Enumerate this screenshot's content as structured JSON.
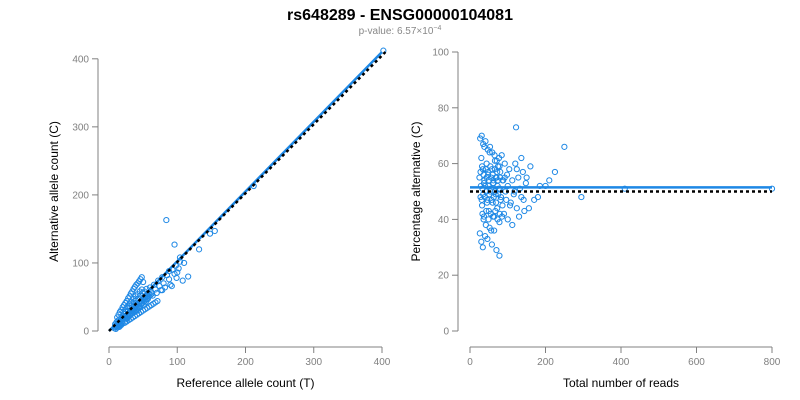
{
  "title": "rs648289 - ENSG00000104081",
  "subtitle": {
    "prefix": "p-value: 6.57×10",
    "exponent": "−4"
  },
  "colors": {
    "points": "#1e88e5",
    "fit_line": "#1e88e5",
    "reference_line": "#000000",
    "axis": "#808080",
    "background": "#ffffff"
  },
  "chart_data": [
    {
      "type": "scatter",
      "xlabel": "Reference allele count (T)",
      "ylabel": "Alternative allele count (C)",
      "xlim": [
        0,
        400
      ],
      "ylim": [
        0,
        410
      ],
      "xticks": [
        0,
        100,
        200,
        300,
        400
      ],
      "yticks": [
        0,
        100,
        200,
        300,
        400
      ],
      "grid": false,
      "legend": "none",
      "marker": "open-circle",
      "fit_line": {
        "from": [
          0,
          0
        ],
        "to": [
          400,
          410
        ],
        "style": "solid"
      },
      "reference_line": {
        "from": [
          0,
          0
        ],
        "to": [
          405,
          410
        ],
        "style": "dotted"
      },
      "points": [
        [
          9,
          10
        ],
        [
          10,
          8
        ],
        [
          11,
          13
        ],
        [
          12,
          9
        ],
        [
          13,
          15
        ],
        [
          14,
          12
        ],
        [
          15,
          17
        ],
        [
          16,
          14
        ],
        [
          17,
          11
        ],
        [
          18,
          19
        ],
        [
          19,
          16
        ],
        [
          20,
          22
        ],
        [
          21,
          18
        ],
        [
          22,
          25
        ],
        [
          23,
          20
        ],
        [
          24,
          14
        ],
        [
          25,
          28
        ],
        [
          26,
          23
        ],
        [
          27,
          21
        ],
        [
          28,
          30
        ],
        [
          29,
          26
        ],
        [
          30,
          34
        ],
        [
          31,
          24
        ],
        [
          32,
          29
        ],
        [
          33,
          38
        ],
        [
          34,
          27
        ],
        [
          35,
          31
        ],
        [
          36,
          42
        ],
        [
          37,
          33
        ],
        [
          38,
          28
        ],
        [
          39,
          45
        ],
        [
          40,
          36
        ],
        [
          41,
          39
        ],
        [
          42,
          30
        ],
        [
          43,
          48
        ],
        [
          44,
          41
        ],
        [
          45,
          35
        ],
        [
          46,
          52
        ],
        [
          47,
          44
        ],
        [
          48,
          40
        ],
        [
          49,
          56
        ],
        [
          50,
          46
        ],
        [
          51,
          38
        ],
        [
          52,
          58
        ],
        [
          53,
          49
        ],
        [
          54,
          43
        ],
        [
          55,
          62
        ],
        [
          56,
          51
        ],
        [
          57,
          47
        ],
        [
          58,
          55
        ],
        [
          60,
          64
        ],
        [
          62,
          57
        ],
        [
          64,
          52
        ],
        [
          66,
          68
        ],
        [
          68,
          61
        ],
        [
          70,
          56
        ],
        [
          72,
          74
        ],
        [
          74,
          66
        ],
        [
          76,
          60
        ],
        [
          78,
          79
        ],
        [
          80,
          70
        ],
        [
          82,
          64
        ],
        [
          85,
          82
        ],
        [
          88,
          76
        ],
        [
          90,
          68
        ],
        [
          93,
          90
        ],
        [
          96,
          84
        ],
        [
          98,
          96
        ],
        [
          100,
          86
        ],
        [
          104,
          102
        ],
        [
          12,
          20
        ],
        [
          14,
          24
        ],
        [
          16,
          28
        ],
        [
          18,
          31
        ],
        [
          20,
          35
        ],
        [
          22,
          38
        ],
        [
          24,
          41
        ],
        [
          26,
          44
        ],
        [
          28,
          48
        ],
        [
          30,
          51
        ],
        [
          32,
          55
        ],
        [
          34,
          58
        ],
        [
          36,
          62
        ],
        [
          38,
          65
        ],
        [
          40,
          68
        ],
        [
          42,
          70
        ],
        [
          44,
          73
        ],
        [
          46,
          76
        ],
        [
          48,
          79
        ],
        [
          50,
          72
        ],
        [
          15,
          6
        ],
        [
          18,
          9
        ],
        [
          20,
          11
        ],
        [
          23,
          12
        ],
        [
          26,
          14
        ],
        [
          29,
          16
        ],
        [
          32,
          18
        ],
        [
          35,
          20
        ],
        [
          38,
          22
        ],
        [
          41,
          24
        ],
        [
          44,
          26
        ],
        [
          47,
          28
        ],
        [
          50,
          30
        ],
        [
          53,
          32
        ],
        [
          56,
          34
        ],
        [
          59,
          36
        ],
        [
          62,
          38
        ],
        [
          65,
          40
        ],
        [
          68,
          42
        ],
        [
          71,
          44
        ],
        [
          8,
          4
        ],
        [
          9,
          6
        ],
        [
          10,
          3
        ],
        [
          11,
          7
        ],
        [
          12,
          5
        ],
        [
          13,
          8
        ],
        [
          14,
          6
        ],
        [
          15,
          9
        ],
        [
          16,
          7
        ],
        [
          17,
          10
        ],
        [
          25,
          18
        ],
        [
          27,
          19
        ],
        [
          29,
          22
        ],
        [
          31,
          23
        ],
        [
          33,
          25
        ],
        [
          35,
          27
        ],
        [
          37,
          29
        ],
        [
          39,
          31
        ],
        [
          41,
          33
        ],
        [
          43,
          35
        ],
        [
          45,
          37
        ],
        [
          47,
          39
        ],
        [
          49,
          41
        ],
        [
          51,
          43
        ],
        [
          53,
          45
        ],
        [
          55,
          47
        ],
        [
          57,
          49
        ],
        [
          59,
          51
        ],
        [
          61,
          53
        ],
        [
          63,
          55
        ],
        [
          21,
          28
        ],
        [
          24,
          32
        ],
        [
          27,
          36
        ],
        [
          30,
          40
        ],
        [
          33,
          43
        ],
        [
          36,
          47
        ],
        [
          39,
          51
        ],
        [
          42,
          54
        ],
        [
          45,
          58
        ],
        [
          48,
          61
        ],
        [
          84,
          163
        ],
        [
          96,
          127
        ],
        [
          104,
          108
        ],
        [
          88,
          88
        ],
        [
          110,
          100
        ],
        [
          78,
          60
        ],
        [
          102,
          92
        ],
        [
          99,
          78
        ],
        [
          92,
          66
        ],
        [
          108,
          74
        ],
        [
          116,
          80
        ],
        [
          132,
          120
        ],
        [
          148,
          143
        ],
        [
          155,
          147
        ],
        [
          212,
          213
        ],
        [
          402,
          412
        ]
      ]
    },
    {
      "type": "scatter",
      "xlabel": "Total number of reads",
      "ylabel": "Percentage alternative (C)",
      "xlim": [
        0,
        800
      ],
      "ylim": [
        0,
        100
      ],
      "xticks": [
        0,
        200,
        400,
        600,
        800
      ],
      "yticks": [
        0,
        20,
        40,
        60,
        80,
        100
      ],
      "grid": false,
      "legend": "none",
      "marker": "open-circle",
      "fit_line": {
        "from": [
          0,
          51.5
        ],
        "to": [
          800,
          51.5
        ],
        "style": "solid"
      },
      "reference_line": {
        "from": [
          0,
          50
        ],
        "to": [
          800,
          50
        ],
        "style": "dotted"
      },
      "points": [
        [
          25,
          55
        ],
        [
          28,
          48
        ],
        [
          30,
          62
        ],
        [
          32,
          45
        ],
        [
          34,
          58
        ],
        [
          36,
          40
        ],
        [
          38,
          66
        ],
        [
          40,
          52
        ],
        [
          42,
          38
        ],
        [
          44,
          60
        ],
        [
          46,
          47
        ],
        [
          48,
          56
        ],
        [
          50,
          43
        ],
        [
          52,
          64
        ],
        [
          54,
          50
        ],
        [
          56,
          36
        ],
        [
          58,
          58
        ],
        [
          60,
          46
        ],
        [
          62,
          53
        ],
        [
          64,
          41
        ],
        [
          66,
          61
        ],
        [
          68,
          49
        ],
        [
          70,
          55
        ],
        [
          72,
          44
        ],
        [
          74,
          59
        ],
        [
          76,
          51
        ],
        [
          78,
          39
        ],
        [
          80,
          57
        ],
        [
          82,
          48
        ],
        [
          84,
          63
        ],
        [
          86,
          45
        ],
        [
          88,
          54
        ],
        [
          90,
          42
        ],
        [
          92,
          60
        ],
        [
          94,
          50
        ],
        [
          96,
          47
        ],
        [
          98,
          56
        ],
        [
          100,
          52
        ],
        [
          104,
          58
        ],
        [
          108,
          46
        ],
        [
          112,
          54
        ],
        [
          116,
          49
        ],
        [
          120,
          60
        ],
        [
          124,
          44
        ],
        [
          128,
          55
        ],
        [
          132,
          51
        ],
        [
          136,
          48
        ],
        [
          140,
          57
        ],
        [
          144,
          43
        ],
        [
          148,
          53
        ],
        [
          26,
          35
        ],
        [
          30,
          32
        ],
        [
          34,
          30
        ],
        [
          40,
          34
        ],
        [
          46,
          33
        ],
        [
          52,
          37
        ],
        [
          58,
          31
        ],
        [
          64,
          36
        ],
        [
          70,
          29
        ],
        [
          78,
          27
        ],
        [
          27,
          69
        ],
        [
          31,
          70
        ],
        [
          35,
          67
        ],
        [
          41,
          68
        ],
        [
          47,
          65
        ],
        [
          53,
          66
        ],
        [
          59,
          64
        ],
        [
          65,
          63
        ],
        [
          71,
          61
        ],
        [
          77,
          62
        ],
        [
          29,
          52
        ],
        [
          33,
          51
        ],
        [
          37,
          53
        ],
        [
          43,
          50
        ],
        [
          49,
          52
        ],
        [
          55,
          51
        ],
        [
          61,
          53
        ],
        [
          67,
          50
        ],
        [
          73,
          52
        ],
        [
          79,
          51
        ],
        [
          31,
          47
        ],
        [
          35,
          49
        ],
        [
          39,
          48
        ],
        [
          45,
          46
        ],
        [
          51,
          49
        ],
        [
          57,
          47
        ],
        [
          63,
          48
        ],
        [
          69,
          46
        ],
        [
          75,
          49
        ],
        [
          81,
          47
        ],
        [
          28,
          57
        ],
        [
          32,
          59
        ],
        [
          36,
          56
        ],
        [
          42,
          58
        ],
        [
          48,
          57
        ],
        [
          54,
          59
        ],
        [
          60,
          56
        ],
        [
          66,
          58
        ],
        [
          72,
          57
        ],
        [
          78,
          59
        ],
        [
          33,
          42
        ],
        [
          37,
          41
        ],
        [
          43,
          43
        ],
        [
          49,
          40
        ],
        [
          55,
          42
        ],
        [
          61,
          41
        ],
        [
          67,
          43
        ],
        [
          73,
          40
        ],
        [
          79,
          42
        ],
        [
          85,
          41
        ],
        [
          38,
          54
        ],
        [
          44,
          55
        ],
        [
          50,
          54
        ],
        [
          56,
          55
        ],
        [
          62,
          54
        ],
        [
          68,
          55
        ],
        [
          74,
          54
        ],
        [
          80,
          55
        ],
        [
          86,
          54
        ],
        [
          92,
          55
        ],
        [
          100,
          40
        ],
        [
          106,
          45
        ],
        [
          112,
          38
        ],
        [
          118,
          50
        ],
        [
          124,
          58
        ],
        [
          130,
          41
        ],
        [
          136,
          62
        ],
        [
          142,
          47
        ],
        [
          150,
          55
        ],
        [
          156,
          44
        ],
        [
          122,
          73
        ],
        [
          160,
          59
        ],
        [
          170,
          47
        ],
        [
          180,
          48
        ],
        [
          185,
          52
        ],
        [
          200,
          52
        ],
        [
          210,
          54
        ],
        [
          225,
          57
        ],
        [
          250,
          66
        ],
        [
          295,
          48
        ],
        [
          410,
          51
        ],
        [
          800,
          51
        ]
      ]
    }
  ]
}
